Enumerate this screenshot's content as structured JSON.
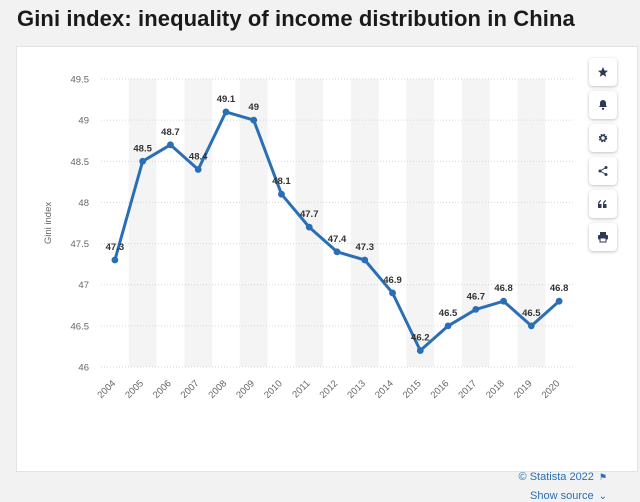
{
  "page": {
    "title": "Gini index: inequality of income distribution in China"
  },
  "toolbar": {
    "buttons": [
      {
        "name": "favorite-button",
        "icon": "star-icon"
      },
      {
        "name": "notification-button",
        "icon": "bell-icon"
      },
      {
        "name": "settings-button",
        "icon": "gear-icon"
      },
      {
        "name": "share-button",
        "icon": "share-icon"
      },
      {
        "name": "cite-button",
        "icon": "quote-icon"
      },
      {
        "name": "print-button",
        "icon": "print-icon"
      }
    ]
  },
  "footer": {
    "credit": "© Statista 2022",
    "show_source": "Show source"
  },
  "colors": {
    "line": "#2a6fb5",
    "accent": "#2a6fb5",
    "band": "#f4f4f4",
    "grid": "#d6d6d6",
    "tick": "#666666",
    "label": "#333333"
  },
  "chart_data": {
    "type": "line",
    "title": "",
    "xlabel": "",
    "ylabel": "Gini index",
    "x": [
      "2004",
      "2005",
      "2006",
      "2007",
      "2008",
      "2009",
      "2010",
      "2011",
      "2012",
      "2013",
      "2014",
      "2015",
      "2016",
      "2017",
      "2018",
      "2019",
      "2020"
    ],
    "series": [
      {
        "values": [
          47.3,
          48.5,
          48.7,
          48.4,
          49.1,
          49,
          48.1,
          47.7,
          47.4,
          47.3,
          46.9,
          46.2,
          46.5,
          46.7,
          46.8,
          46.5,
          46.8
        ],
        "labels": [
          "47.3",
          "48.5",
          "48.7",
          "48.4",
          "49.1",
          "49",
          "48.1",
          "47.7",
          "47.4",
          "47.3",
          "46.9",
          "46.2",
          "46.5",
          "46.7",
          "46.8",
          "46.5",
          "46.8"
        ]
      }
    ],
    "yticks": [
      "46",
      "46.5",
      "47",
      "47.5",
      "48",
      "48.5",
      "49",
      "49.5"
    ],
    "ylim": [
      46,
      49.5
    ],
    "grid": true,
    "legend": "none"
  }
}
